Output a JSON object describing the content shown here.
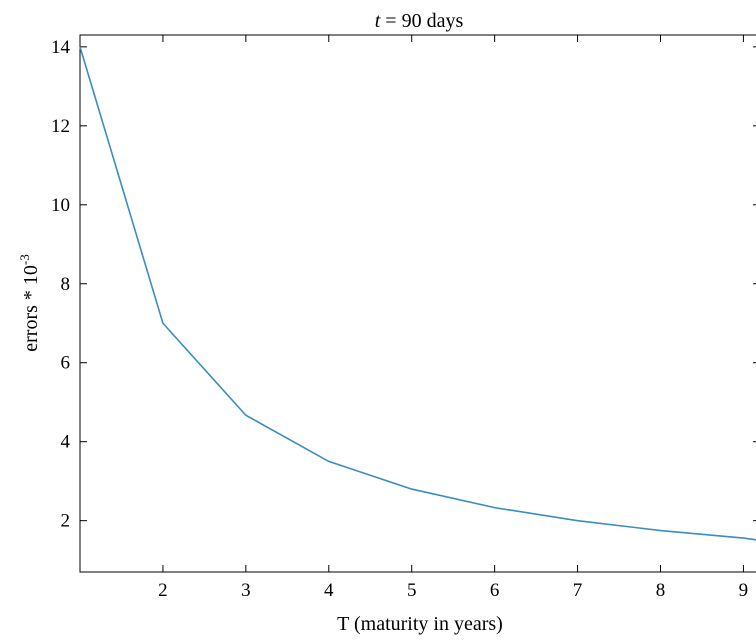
{
  "chart_data": {
    "type": "line",
    "title_italic": "t",
    "title_rest": " = 90 days",
    "xlabel": "T (maturity in years)",
    "ylabel_main": "errors * 10",
    "ylabel_exp": "-3",
    "xlim": [
      1,
      9.2
    ],
    "ylim": [
      0.7,
      14.3
    ],
    "xticks": [
      2,
      3,
      4,
      5,
      6,
      7,
      8,
      9
    ],
    "yticks": [
      2,
      4,
      6,
      8,
      10,
      12,
      14
    ],
    "grid": false,
    "line_color": "#3a8dc0",
    "series": [
      {
        "x": [
          1,
          2,
          3,
          4,
          5,
          6,
          7,
          8,
          9,
          9.2
        ],
        "values": [
          14.0,
          7.0,
          4.67,
          3.5,
          2.8,
          2.33,
          2.0,
          1.75,
          1.56,
          1.5
        ]
      }
    ]
  }
}
